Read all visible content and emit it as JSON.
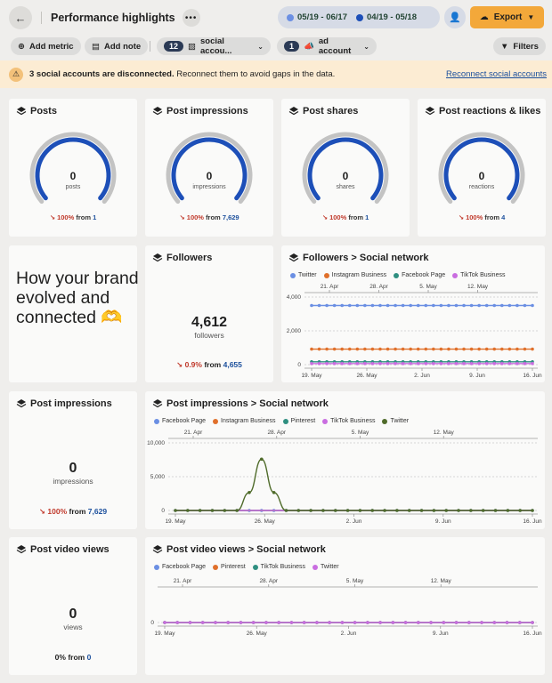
{
  "header": {
    "title": "Performance highlights",
    "date_range_1": "05/19 - 06/17",
    "date_range_2": "04/19 - 05/18",
    "date_color_1": "#6b8fe3",
    "date_color_2": "#1d4fb8",
    "export_label": "Export"
  },
  "toolbar": {
    "add_metric": "Add metric",
    "add_note": "Add note",
    "social_count": "12",
    "social_label": "social accou...",
    "ad_count": "1",
    "ad_label": "ad account",
    "filters": "Filters"
  },
  "banner": {
    "bold": "3 social accounts are disconnected.",
    "text": " Reconnect them to avoid gaps in the data.",
    "link": "Reconnect social accounts"
  },
  "gauges": [
    {
      "title": "Posts",
      "value": "0",
      "unit": "posts",
      "pct": "100%",
      "from": "from",
      "ref": "1"
    },
    {
      "title": "Post impressions",
      "value": "0",
      "unit": "impressions",
      "pct": "100%",
      "from": "from",
      "ref": "7,629"
    },
    {
      "title": "Post shares",
      "value": "0",
      "unit": "shares",
      "pct": "100%",
      "from": "from",
      "ref": "1"
    },
    {
      "title": "Post reactions & likes",
      "value": "0",
      "unit": "reactions",
      "pct": "100%",
      "from": "from",
      "ref": "4"
    }
  ],
  "tagline": "How your brand evolved and connected 🫶",
  "followers": {
    "title": "Followers",
    "value": "4,612",
    "unit": "followers",
    "pct": "0.9%",
    "from": "from",
    "ref": "4,655"
  },
  "impressions_card": {
    "title": "Post impressions",
    "value": "0",
    "unit": "impressions",
    "pct": "100%",
    "from": "from",
    "ref": "7,629"
  },
  "video_card": {
    "title": "Post video views",
    "value": "0",
    "unit": "views",
    "pct": "0%",
    "from": "from",
    "ref": "0"
  },
  "chart_data": [
    {
      "type": "line",
      "title": "Followers > Social network",
      "x_bottom": [
        "19. May",
        "26. May",
        "2. Jun",
        "9. Jun",
        "16. Jun"
      ],
      "x_top": [
        "21. Apr",
        "28. Apr",
        "5. May",
        "12. May"
      ],
      "yticks": [
        "4,000",
        "2,000",
        "0"
      ],
      "ylim": [
        0,
        4000
      ],
      "series": [
        {
          "name": "Twitter",
          "color": "#6b8fe3",
          "values": [
            3500
          ]
        },
        {
          "name": "Instagram Business",
          "color": "#e0702b",
          "values": [
            920
          ]
        },
        {
          "name": "Facebook Page",
          "color": "#2f8f80",
          "values": [
            170
          ]
        },
        {
          "name": "TikTok Business",
          "color": "#c96de0",
          "values": [
            60
          ]
        }
      ],
      "points": 30
    },
    {
      "type": "line",
      "title": "Post impressions > Social network",
      "x_bottom": [
        "19. May",
        "26. May",
        "2. Jun",
        "9. Jun",
        "16. Jun"
      ],
      "x_top": [
        "21. Apr",
        "28. Apr",
        "5. May",
        "12. May"
      ],
      "yticks": [
        "10,000",
        "5,000",
        "0"
      ],
      "ylim": [
        0,
        10000
      ],
      "series": [
        {
          "name": "Facebook Page",
          "color": "#6b8fe3"
        },
        {
          "name": "Instagram Business",
          "color": "#e0702b"
        },
        {
          "name": "Pinterest",
          "color": "#2f8f80"
        },
        {
          "name": "TikTok Business",
          "color": "#c96de0"
        },
        {
          "name": "Twitter",
          "color": "#4f6b2a"
        }
      ],
      "peak_index": 7,
      "peak_value": 7600,
      "points": 30
    },
    {
      "type": "line",
      "title": "Post video views > Social network",
      "x_bottom": [
        "19. May",
        "26. May",
        "2. Jun",
        "9. Jun",
        "16. Jun"
      ],
      "x_top": [
        "21. Apr",
        "28. Apr",
        "5. May",
        "12. May"
      ],
      "yticks": [
        "0"
      ],
      "ylim": [
        0,
        1
      ],
      "series": [
        {
          "name": "Facebook Page",
          "color": "#6b8fe3"
        },
        {
          "name": "Pinterest",
          "color": "#e0702b"
        },
        {
          "name": "TikTok Business",
          "color": "#2f8f80"
        },
        {
          "name": "Twitter",
          "color": "#c96de0"
        }
      ],
      "points": 30
    }
  ]
}
